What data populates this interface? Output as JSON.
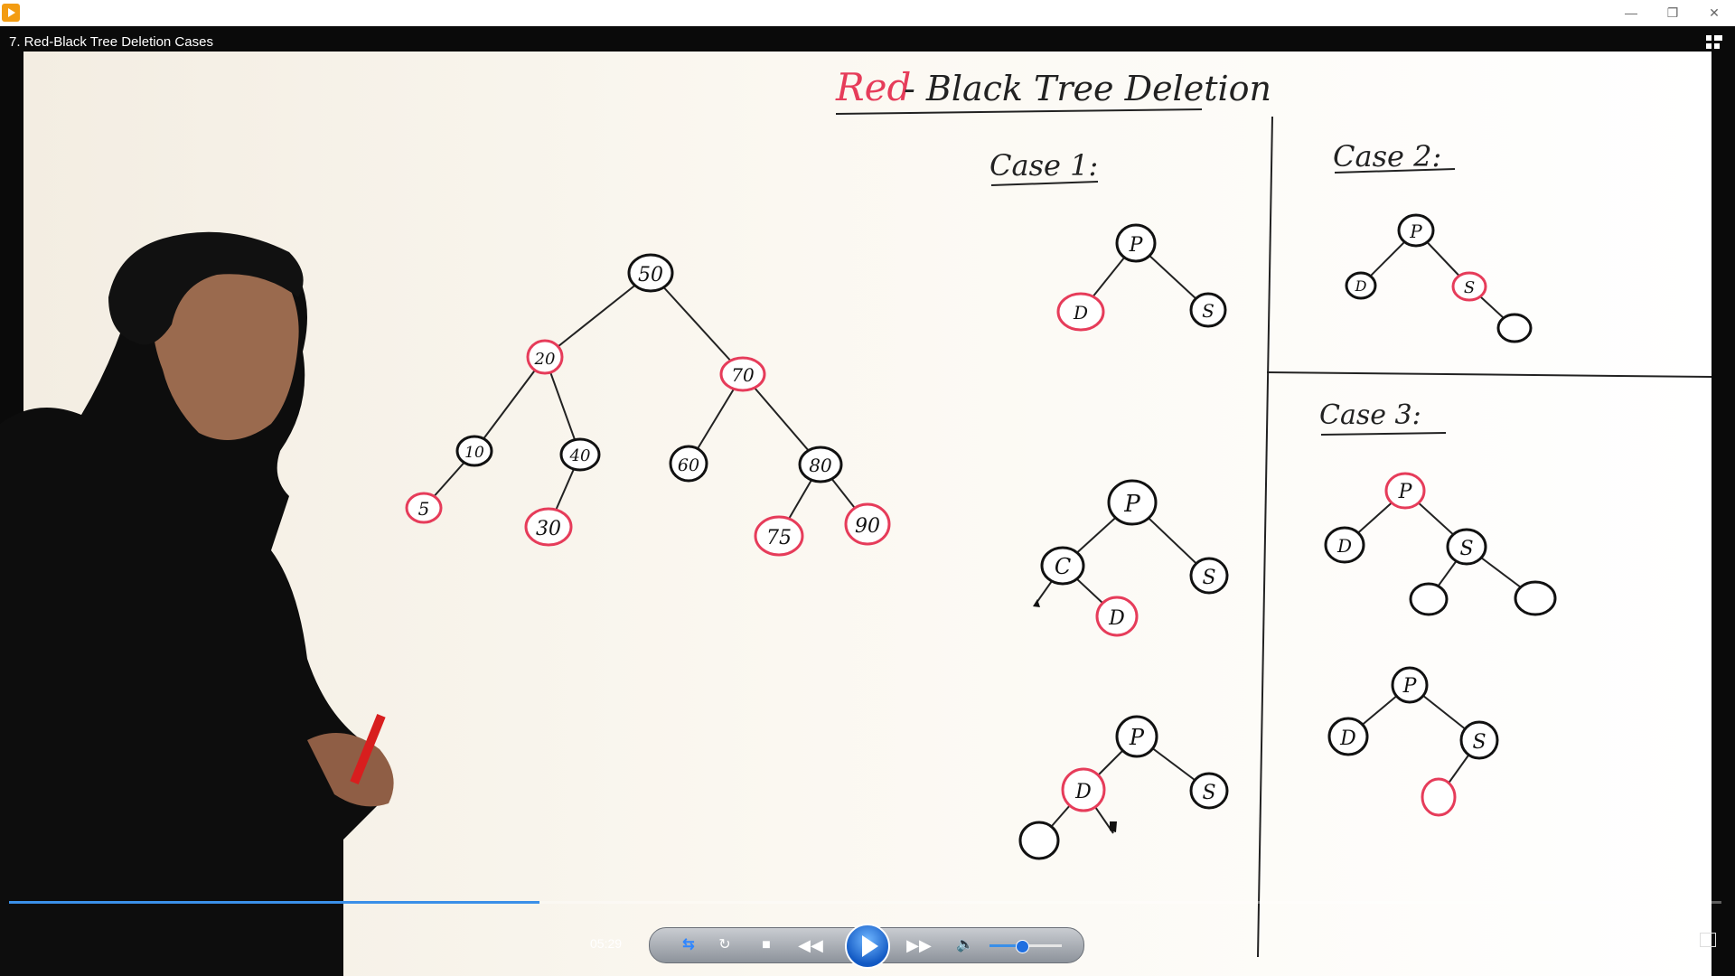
{
  "window": {
    "app_icon": "media-player-icon",
    "minimize_label": "—",
    "restore_label": "❐",
    "close_label": "✕"
  },
  "video": {
    "title": "7. Red-Black Tree Deletion Cases"
  },
  "whiteboard": {
    "heading_red": "Red",
    "heading_black": "- Black Tree Deletion",
    "case1_label": "Case 1:",
    "case2_label": "Case 2:",
    "case3_label": "Case 3:",
    "main_tree": {
      "n50": "50",
      "n20": "20",
      "n70": "70",
      "n10": "10",
      "n40": "40",
      "n60": "60",
      "n80": "80",
      "n5": "5",
      "n30": "30",
      "n75": "75",
      "n90": "90"
    },
    "node_p": "P",
    "node_d": "D",
    "node_s": "S",
    "node_c": "C"
  },
  "player": {
    "current_time": "05:29",
    "progress_percent": 31,
    "volume_percent": 45,
    "switch_view_icon": "switch-view-icon",
    "repeat_icon": "repeat-icon",
    "stop_icon": "stop-icon",
    "rewind_icon": "rewind-icon",
    "play_icon": "play-icon",
    "fast_forward_icon": "fast-forward-icon",
    "volume_icon": "volume-icon"
  },
  "colors": {
    "red_node": "#e63c5a",
    "black_node": "#111111",
    "progress": "#3a8fe8"
  }
}
